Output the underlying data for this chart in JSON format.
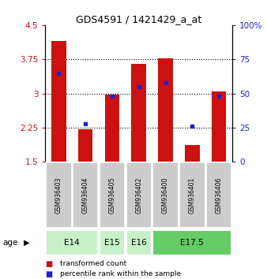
{
  "title": "GDS4591 / 1421429_a_at",
  "samples": [
    "GSM936403",
    "GSM936404",
    "GSM936405",
    "GSM936402",
    "GSM936400",
    "GSM936401",
    "GSM936406"
  ],
  "transformed_count": [
    4.15,
    2.22,
    2.97,
    3.65,
    3.77,
    1.87,
    3.05
  ],
  "percentile_rank": [
    65,
    28,
    48,
    55,
    58,
    26,
    48
  ],
  "ylim_left": [
    1.5,
    4.5
  ],
  "ylim_right": [
    0,
    100
  ],
  "yticks_left": [
    1.5,
    2.25,
    3.0,
    3.75,
    4.5
  ],
  "yticks_right": [
    0,
    25,
    50,
    75,
    100
  ],
  "ytick_labels_left": [
    "1.5",
    "2.25",
    "3",
    "3.75",
    "4.5"
  ],
  "ytick_labels_right": [
    "0",
    "25",
    "50",
    "75",
    "100%"
  ],
  "age_groups": [
    {
      "label": "E14",
      "samples": [
        "GSM936403",
        "GSM936404"
      ],
      "color": "#c8f0c8"
    },
    {
      "label": "E15",
      "samples": [
        "GSM936405"
      ],
      "color": "#c8f0c8"
    },
    {
      "label": "E16",
      "samples": [
        "GSM936402"
      ],
      "color": "#c8f0c8"
    },
    {
      "label": "E17.5",
      "samples": [
        "GSM936400",
        "GSM936401",
        "GSM936406"
      ],
      "color": "#66cc66"
    }
  ],
  "bar_color": "#cc1111",
  "dot_color": "#2222cc",
  "bar_width": 0.55,
  "sample_box_color": "#cccccc",
  "grid_color": "#000000",
  "font_color_left": "#cc1111",
  "font_color_right": "#2222cc",
  "base_value": 1.5
}
